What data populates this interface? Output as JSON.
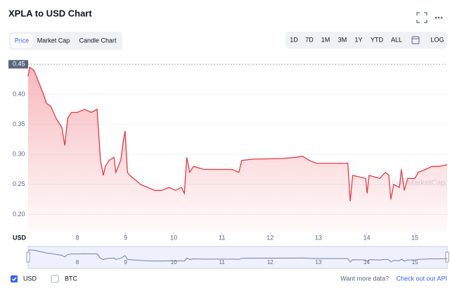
{
  "header": {
    "title": "XPLA to USD Chart"
  },
  "tabs": [
    "Price",
    "Market Cap",
    "Candle Chart"
  ],
  "ranges": [
    "1D",
    "7D",
    "1M",
    "3M",
    "1Y",
    "YTD",
    "ALL"
  ],
  "log_button": "LOG",
  "watermark": "CoinMarketCap",
  "footer": {
    "currencies": [
      "USD",
      "BTC"
    ],
    "prompt": "Want more data?",
    "link": "Check out our API"
  },
  "chart_data": {
    "type": "line",
    "y_label": "USD",
    "x": [
      6.98,
      7.01,
      7.1,
      7.2,
      7.3,
      7.36,
      7.45,
      7.56,
      7.68,
      7.74,
      7.8,
      7.88,
      8.0,
      8.15,
      8.29,
      8.41,
      8.44,
      8.48,
      8.54,
      8.58,
      8.66,
      8.76,
      8.8,
      8.9,
      8.95,
      8.99,
      9.04,
      9.09,
      9.24,
      9.31,
      9.46,
      9.6,
      9.75,
      9.9,
      10.04,
      10.16,
      10.22,
      10.27,
      10.33,
      10.41,
      10.62,
      10.84,
      11.21,
      11.35,
      11.41,
      11.64,
      12.23,
      12.52,
      12.67,
      12.81,
      12.96,
      13.25,
      13.61,
      13.66,
      13.71,
      13.98,
      14.01,
      14.05,
      14.27,
      14.39,
      14.46,
      14.5,
      14.56,
      14.68,
      14.72,
      14.78,
      14.85,
      15.0,
      15.07,
      15.22,
      15.36,
      15.51,
      15.67
    ],
    "series": [
      {
        "name": "USD",
        "color": "#ea3943",
        "values": [
          0.43,
          0.445,
          0.44,
          0.42,
          0.4,
          0.385,
          0.38,
          0.36,
          0.345,
          0.315,
          0.36,
          0.37,
          0.37,
          0.375,
          0.37,
          0.375,
          0.34,
          0.29,
          0.265,
          0.28,
          0.29,
          0.295,
          0.27,
          0.29,
          0.32,
          0.339,
          0.27,
          0.265,
          0.255,
          0.25,
          0.245,
          0.24,
          0.24,
          0.245,
          0.24,
          0.245,
          0.235,
          0.295,
          0.27,
          0.28,
          0.275,
          0.275,
          0.275,
          0.27,
          0.29,
          0.292,
          0.293,
          0.295,
          0.297,
          0.29,
          0.285,
          0.285,
          0.285,
          0.222,
          0.265,
          0.26,
          0.235,
          0.265,
          0.26,
          0.27,
          0.265,
          0.225,
          0.25,
          0.245,
          0.275,
          0.24,
          0.26,
          0.26,
          0.27,
          0.275,
          0.28,
          0.28,
          0.283
        ]
      }
    ],
    "xlim": [
      6.98,
      15.67
    ],
    "xticks": [
      8,
      9,
      10,
      11,
      12,
      13,
      14,
      15
    ],
    "ylim": [
      0.17,
      0.455
    ],
    "yticks": [
      {
        "value": 0.2,
        "label": "0.20"
      },
      0.25,
      {
        "value": 0.3,
        "label": "0.30"
      },
      0.35,
      {
        "value": 0.4,
        "label": "0.40"
      },
      0.45
    ],
    "grid": true
  }
}
